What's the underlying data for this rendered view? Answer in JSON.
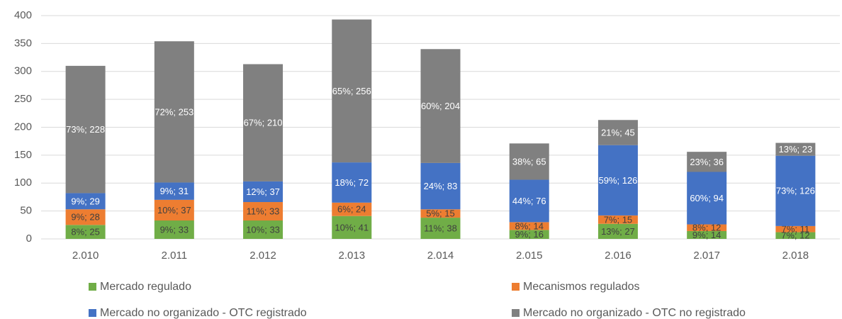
{
  "chart_data": {
    "type": "stacked_bar",
    "categories": [
      "2.010",
      "2.011",
      "2.012",
      "2.013",
      "2.014",
      "2.015",
      "2.016",
      "2.017",
      "2.018"
    ],
    "series": [
      {
        "name": "Mercado regulado",
        "color": "#70ad47",
        "label_color": "#404040",
        "values": [
          25,
          33,
          33,
          41,
          38,
          16,
          27,
          14,
          12
        ],
        "value_labels": [
          "8%; 25",
          "9%; 33",
          "10%; 33",
          "10%; 41",
          "11%; 38",
          "9%; 16",
          "13%; 27",
          "9%; 14",
          "7%; 12"
        ]
      },
      {
        "name": "Mecanismos regulados",
        "color": "#ed7d31",
        "label_color": "#404040",
        "values": [
          28,
          37,
          33,
          24,
          15,
          14,
          15,
          12,
          11
        ],
        "value_labels": [
          "9%; 28",
          "10%; 37",
          "11%; 33",
          "6%; 24",
          "5%; 15",
          "8%; 14",
          "7%; 15",
          "8%; 12",
          "7%; 11"
        ]
      },
      {
        "name": "Mercado no organizado - OTC registrado",
        "color": "#4472c4",
        "label_color": "#ffffff",
        "values": [
          29,
          31,
          37,
          72,
          83,
          76,
          126,
          94,
          126
        ],
        "value_labels": [
          "9%; 29",
          "9%; 31",
          "12%; 37",
          "18%; 72",
          "24%; 83",
          "44%; 76",
          "59%; 126",
          "60%; 94",
          "73%; 126"
        ]
      },
      {
        "name": "Mercado no organizado - OTC no registrado",
        "color": "#808080",
        "label_color": "#ffffff",
        "values": [
          228,
          253,
          210,
          256,
          204,
          65,
          45,
          36,
          23
        ],
        "value_labels": [
          "73%; 228",
          "72%; 253",
          "67%; 210",
          "65%; 256",
          "60%; 204",
          "38%; 65",
          "21%; 45",
          "23%; 36",
          "13%; 23"
        ]
      }
    ],
    "ylim": [
      0,
      400
    ],
    "yticks": [
      0,
      50,
      100,
      150,
      200,
      250,
      300,
      350,
      400
    ],
    "grid": true,
    "legend": "bottom"
  }
}
